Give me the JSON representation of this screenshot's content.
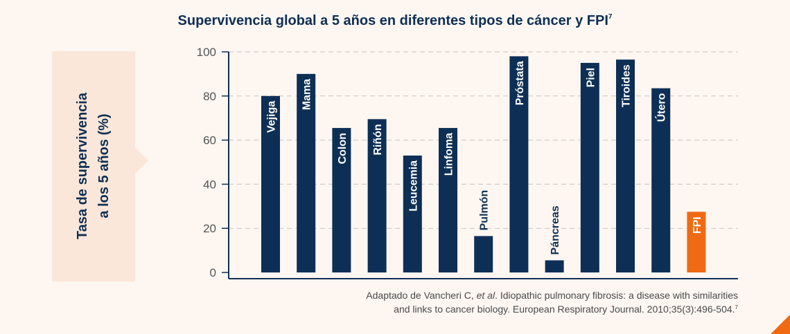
{
  "title": {
    "text": "Supervivencia global a 5 años en diferentes tipos de cáncer y FPI",
    "sup": "7"
  },
  "ylabel": {
    "line1": "Tasa de supervivencia",
    "line2": "a los 5 años (%)"
  },
  "source": {
    "line1_pre": "Adaptado de Vancheri C, ",
    "line1_italic": "et al",
    "line1_post": ". Idiopathic pulmonary fibrosis: a disease with similarities",
    "line2": "and links to cancer biology. European Respiratory Journal. 2010;35(3):496-504.",
    "sup": "7"
  },
  "colors": {
    "bar": "#0e2f55",
    "highlight": "#ef6a12",
    "text": "#0e2f55",
    "accent": "#fbe7d9"
  },
  "chart_data": {
    "type": "bar",
    "categories": [
      "Vejiga",
      "Mama",
      "Colon",
      "Riñón",
      "Leucemia",
      "Linfoma",
      "Pulmón",
      "Próstata",
      "Páncreas",
      "Piel",
      "Tiroides",
      "Útero",
      "FPI"
    ],
    "values": [
      80,
      90,
      65.5,
      69.5,
      53,
      65.5,
      16.5,
      98,
      5.5,
      95,
      96.5,
      83.5,
      27.5
    ],
    "highlight": "FPI",
    "ylim": [
      0,
      100
    ],
    "yticks": [
      "0",
      "20",
      "40",
      "60",
      "80",
      "100"
    ],
    "grid": true
  }
}
